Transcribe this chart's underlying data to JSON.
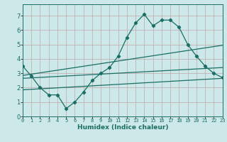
{
  "xlabel": "Humidex (Indice chaleur)",
  "xlim": [
    0,
    23
  ],
  "ylim": [
    0,
    7.8
  ],
  "xticks": [
    0,
    1,
    2,
    3,
    4,
    5,
    6,
    7,
    8,
    9,
    10,
    11,
    12,
    13,
    14,
    15,
    16,
    17,
    18,
    19,
    20,
    21,
    22,
    23
  ],
  "yticks": [
    0,
    1,
    2,
    3,
    4,
    5,
    6,
    7
  ],
  "bg_color": "#cce8e8",
  "grid_color": "#c0a8a8",
  "line_color": "#1a6e64",
  "line1_x": [
    0,
    1,
    2,
    3,
    4,
    5,
    6,
    7,
    8,
    9,
    10,
    11,
    12,
    13,
    14,
    15,
    16,
    17,
    18,
    19,
    20,
    21,
    22,
    23
  ],
  "line1_y": [
    3.5,
    2.8,
    2.0,
    1.5,
    1.5,
    0.55,
    1.0,
    1.7,
    2.5,
    3.0,
    3.4,
    4.2,
    5.5,
    6.5,
    7.1,
    6.3,
    6.7,
    6.7,
    6.2,
    5.0,
    4.2,
    3.5,
    3.0,
    2.7
  ],
  "line2_x": [
    0,
    23
  ],
  "line2_y": [
    2.85,
    4.95
  ],
  "line3_x": [
    0,
    23
  ],
  "line3_y": [
    2.65,
    3.4
  ],
  "line4_x": [
    0,
    23
  ],
  "line4_y": [
    1.85,
    2.65
  ]
}
